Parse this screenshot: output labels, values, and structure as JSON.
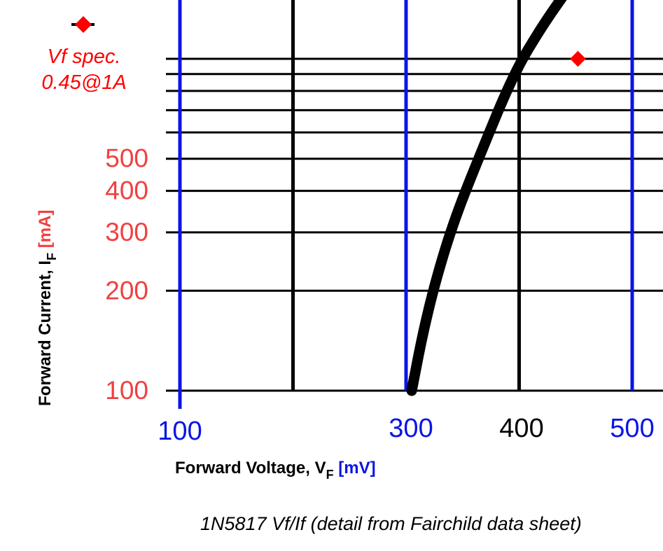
{
  "chart_data": {
    "type": "line",
    "x_axis": {
      "label": "Forward Voltage, V",
      "label_subscript": "F",
      "unit": "[mV]",
      "ticks": [
        {
          "value": 100,
          "label": "100",
          "color": "#0a14e6"
        },
        {
          "value": 300,
          "label": "300",
          "color": "#0a14e6"
        },
        {
          "value": 400,
          "label": "400",
          "color": "#000000"
        },
        {
          "value": 500,
          "label": "500",
          "color": "#0a14e6"
        }
      ],
      "gridlines": [
        {
          "value": 100,
          "color": "#0a14e6"
        },
        {
          "value": 200,
          "color": "#000000"
        },
        {
          "value": 300,
          "color": "#0a14e6"
        },
        {
          "value": 400,
          "color": "#000000"
        },
        {
          "value": 500,
          "color": "#0a14e6"
        }
      ]
    },
    "y_axis": {
      "label": "Forward Current, I",
      "label_subscript": "F",
      "unit": "[mA]",
      "scale": "log",
      "ticks": [
        {
          "value": 100,
          "label": "100"
        },
        {
          "value": 200,
          "label": "200"
        },
        {
          "value": 300,
          "label": "300"
        },
        {
          "value": 400,
          "label": "400"
        },
        {
          "value": 500,
          "label": "500"
        }
      ],
      "gridlines": [
        100,
        200,
        300,
        400,
        500,
        600,
        700,
        800,
        900,
        1000
      ]
    },
    "series": [
      {
        "color": "#000000",
        "points": [
          {
            "x": 305,
            "y": 100
          },
          {
            "x": 315,
            "y": 150
          },
          {
            "x": 327,
            "y": 220
          },
          {
            "x": 343,
            "y": 330
          },
          {
            "x": 364,
            "y": 500
          },
          {
            "x": 395,
            "y": 900
          },
          {
            "x": 420,
            "y": 1250
          },
          {
            "x": 442,
            "y": 1600
          }
        ]
      }
    ],
    "markers": [
      {
        "x": 452,
        "y": 1000,
        "color": "#ff0000"
      }
    ],
    "legend": {
      "position": "top-left",
      "line1": "Vf spec.",
      "line2": "0.45@1A",
      "marker_color": "#ff0000"
    },
    "tick_label_color_y": "#f04040",
    "unit_color_y": "#f04040",
    "unit_color_x": "#0a14e6"
  },
  "caption": "1N5817 Vf/If (detail from Fairchild data sheet)"
}
